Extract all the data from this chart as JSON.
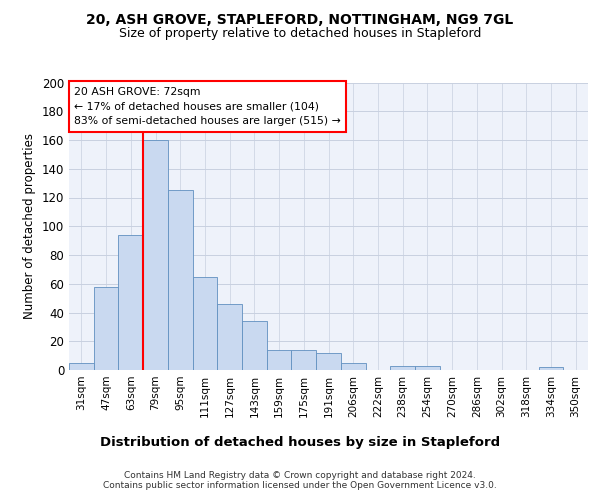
{
  "title1": "20, ASH GROVE, STAPLEFORD, NOTTINGHAM, NG9 7GL",
  "title2": "Size of property relative to detached houses in Stapleford",
  "xlabel": "Distribution of detached houses by size in Stapleford",
  "ylabel": "Number of detached properties",
  "footer1": "Contains HM Land Registry data © Crown copyright and database right 2024.",
  "footer2": "Contains public sector information licensed under the Open Government Licence v3.0.",
  "annotation_line1": "20 ASH GROVE: 72sqm",
  "annotation_line2": "← 17% of detached houses are smaller (104)",
  "annotation_line3": "83% of semi-detached houses are larger (515) →",
  "bar_labels": [
    "31sqm",
    "47sqm",
    "63sqm",
    "79sqm",
    "95sqm",
    "111sqm",
    "127sqm",
    "143sqm",
    "159sqm",
    "175sqm",
    "191sqm",
    "206sqm",
    "222sqm",
    "238sqm",
    "254sqm",
    "270sqm",
    "286sqm",
    "302sqm",
    "318sqm",
    "334sqm",
    "350sqm"
  ],
  "bar_values": [
    5,
    58,
    94,
    160,
    125,
    65,
    46,
    34,
    14,
    14,
    12,
    5,
    0,
    3,
    3,
    0,
    0,
    0,
    0,
    2,
    0
  ],
  "bar_color": "#c9d9f0",
  "bar_edge_color": "#6090c0",
  "vline_x_idx": 2.5,
  "vline_color": "red",
  "ylim": [
    0,
    200
  ],
  "yticks": [
    0,
    20,
    40,
    60,
    80,
    100,
    120,
    140,
    160,
    180,
    200
  ],
  "background_color": "#eef2fa",
  "grid_color": "#c8d0e0",
  "fig_width": 6.0,
  "fig_height": 5.0,
  "dpi": 100
}
